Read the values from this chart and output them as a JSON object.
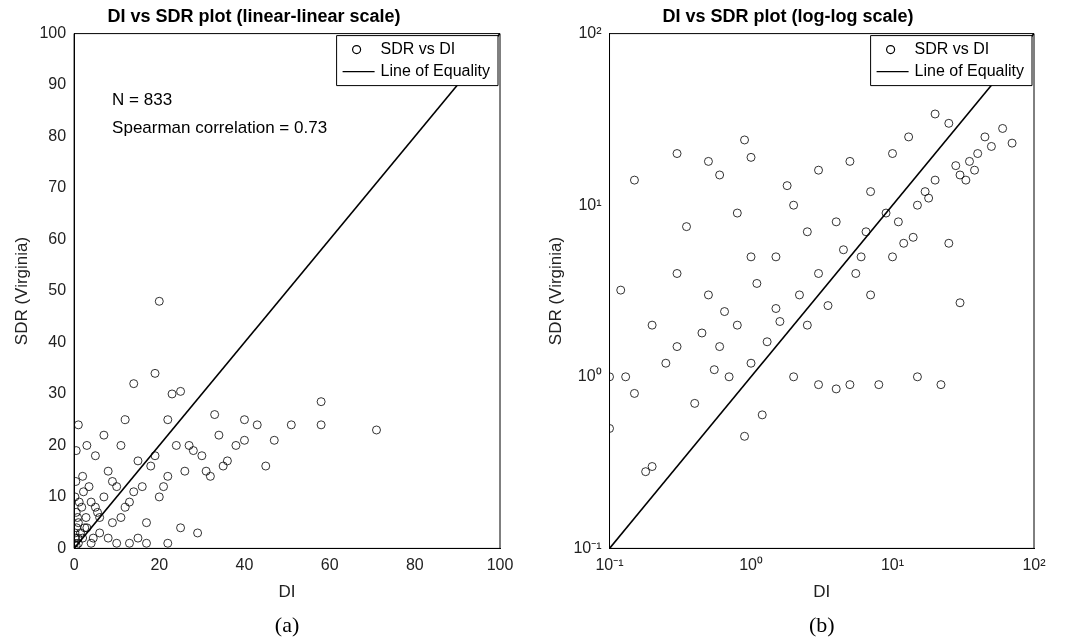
{
  "chart_data": [
    {
      "type": "scatter",
      "title": "DI vs SDR plot (linear-linear scale)",
      "xlabel": "DI",
      "ylabel": "SDR (Virginia)",
      "xlim": [
        0,
        100
      ],
      "ylim": [
        0,
        100
      ],
      "xticks": [
        0,
        20,
        40,
        60,
        80,
        100
      ],
      "yticks": [
        0,
        10,
        20,
        30,
        40,
        50,
        60,
        70,
        80,
        90,
        100
      ],
      "grid": false,
      "legend": "top right",
      "annotations": [
        "N = 833",
        "Spearman correlation = 0.73",
        "(a)"
      ],
      "series": [
        {
          "name": "SDR vs DI",
          "marker": "circle",
          "color": "#000000",
          "x": [
            20,
            19,
            14,
            25,
            23,
            33,
            22,
            12,
            40,
            43,
            51,
            58,
            58,
            71,
            47,
            38,
            36,
            30,
            26,
            32,
            29,
            17,
            22,
            25,
            15,
            13,
            20,
            10,
            8,
            5,
            3,
            1,
            0.5,
            2,
            4,
            6,
            1,
            0.3,
            0.5,
            2,
            3,
            9,
            12,
            16,
            18,
            24,
            7,
            11,
            14,
            22,
            35,
            0.2,
            0.5,
            1,
            1.5,
            4,
            8,
            10,
            27,
            45,
            40,
            0.1,
            0.2,
            0.8,
            1.2,
            2.5,
            3.5,
            5,
            6,
            7,
            9,
            11,
            13,
            15,
            17,
            19,
            21,
            28,
            31,
            34,
            0.4,
            0.6,
            0.9,
            1.8,
            2.2,
            2.8,
            4.5,
            5.5
          ],
          "values": [
            48,
            34,
            32,
            30.5,
            30,
            26,
            25,
            25,
            25,
            24,
            24,
            28.5,
            24,
            23,
            21,
            20,
            17,
            18,
            15,
            14,
            3,
            1,
            1,
            4,
            2,
            1,
            10,
            12,
            15,
            18,
            20,
            24,
            19,
            14,
            9,
            6,
            5,
            2,
            0.5,
            2,
            4,
            5,
            8,
            12,
            16,
            20,
            22,
            20,
            11,
            14,
            16,
            10,
            7,
            1,
            3,
            1,
            2,
            1,
            20,
            16,
            21,
            1,
            3,
            6,
            9,
            4,
            12,
            8,
            3,
            10,
            13,
            6,
            9,
            17,
            5,
            18,
            12,
            19,
            15,
            22,
            13,
            4,
            2,
            8,
            11,
            6,
            2,
            7
          ]
        },
        {
          "name": "Line of Equality",
          "type": "line",
          "marker": "none",
          "line_style": "solid",
          "color": "#000000",
          "x": [
            0,
            100
          ],
          "values": [
            0,
            100
          ]
        }
      ]
    },
    {
      "type": "scatter",
      "title": "DI vs SDR plot (log-log scale)",
      "xlabel": "DI",
      "ylabel": "SDR (Virginia)",
      "log": "xy",
      "xlim": [
        0.1,
        100
      ],
      "ylim": [
        0.1,
        100
      ],
      "xticks": [
        {
          "value": 0.1,
          "label": "10⁻¹"
        },
        {
          "value": 1,
          "label": "10⁰"
        },
        {
          "value": 10,
          "label": "10¹"
        },
        {
          "value": 100,
          "label": "10²"
        }
      ],
      "yticks": [
        {
          "value": 0.1,
          "label": "10⁻¹"
        },
        {
          "value": 1,
          "label": "10⁰"
        },
        {
          "value": 10,
          "label": "10¹"
        },
        {
          "value": 100,
          "label": "10²"
        }
      ],
      "grid": false,
      "legend": "top right",
      "annotations": [
        "(b)"
      ],
      "series": [
        {
          "name": "SDR vs DI",
          "marker": "circle",
          "color": "#000000",
          "x": [
            0.12,
            0.1,
            0.15,
            0.13,
            0.2,
            0.18,
            0.3,
            0.35,
            0.5,
            0.6,
            0.9,
            1,
            0.2,
            0.3,
            0.4,
            0.5,
            0.7,
            0.8,
            1,
            0.9,
            1.5,
            2,
            2,
            3,
            3,
            4,
            5,
            5,
            7,
            7,
            10,
            10,
            13,
            15,
            15,
            20,
            20,
            22,
            25,
            30,
            30,
            40,
            50,
            60,
            70,
            25,
            8,
            4,
            12,
            1,
            0.6,
            1.5,
            2.5,
            0.25,
            0.15,
            0.1,
            6,
            17,
            35,
            45,
            1.2,
            3,
            0.3,
            0.8,
            1.8,
            2.5,
            0.45,
            0.55,
            0.65,
            1.1,
            1.3,
            1.6,
            2.2,
            3.5,
            4.5,
            5.5,
            6.5,
            9,
            11,
            14,
            18,
            28,
            33,
            38
          ],
          "values": [
            3.2,
            0.5,
            14,
            1,
            0.3,
            0.28,
            20,
            7.5,
            18,
            15,
            24,
            19,
            2,
            1.5,
            0.7,
            3,
            1,
            2,
            1.2,
            0.45,
            5,
            1,
            10,
            4,
            16,
            8,
            18,
            0.9,
            3,
            12,
            5,
            20,
            25,
            1,
            10,
            34,
            14,
            0.9,
            30,
            2.7,
            15,
            20,
            22,
            28,
            23,
            6,
            0.9,
            0.85,
            6,
            5,
            1.5,
            2.5,
            2,
            1.2,
            0.8,
            1,
            5,
            12,
            18,
            25,
            0.6,
            0.9,
            4,
            9,
            13,
            7,
            1.8,
            1.1,
            2.4,
            3.5,
            1.6,
            2.1,
            3,
            2.6,
            5.5,
            4,
            7,
            9,
            8,
            6.5,
            11,
            17,
            14,
            16
          ]
        },
        {
          "name": "Line of Equality",
          "type": "line",
          "marker": "none",
          "line_style": "solid",
          "color": "#000000",
          "x": [
            0.1,
            100
          ],
          "values": [
            0.1,
            100
          ]
        }
      ]
    }
  ]
}
